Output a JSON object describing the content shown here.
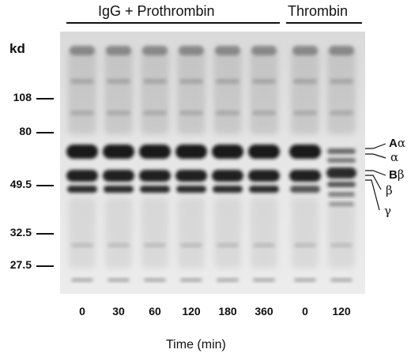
{
  "header": {
    "group_left": "IgG + Prothrombin",
    "group_right": "Thrombin"
  },
  "axis": {
    "unit": "kd",
    "markers": [
      "108",
      "80",
      "49.5",
      "32.5",
      "27.5"
    ]
  },
  "lanes": [
    "0",
    "30",
    "60",
    "120",
    "180",
    "360",
    "0",
    "120"
  ],
  "xlabel": "Time (min)",
  "chains": {
    "a_alpha_main": "A",
    "a_alpha_sub": "α",
    "alpha": "α",
    "b_beta_main": "B",
    "b_beta_sub": "β",
    "beta": "β",
    "gamma": "γ"
  },
  "colors": {
    "ink": "#111111",
    "gel_bg": "#e4e4e4",
    "band": "#161616"
  }
}
